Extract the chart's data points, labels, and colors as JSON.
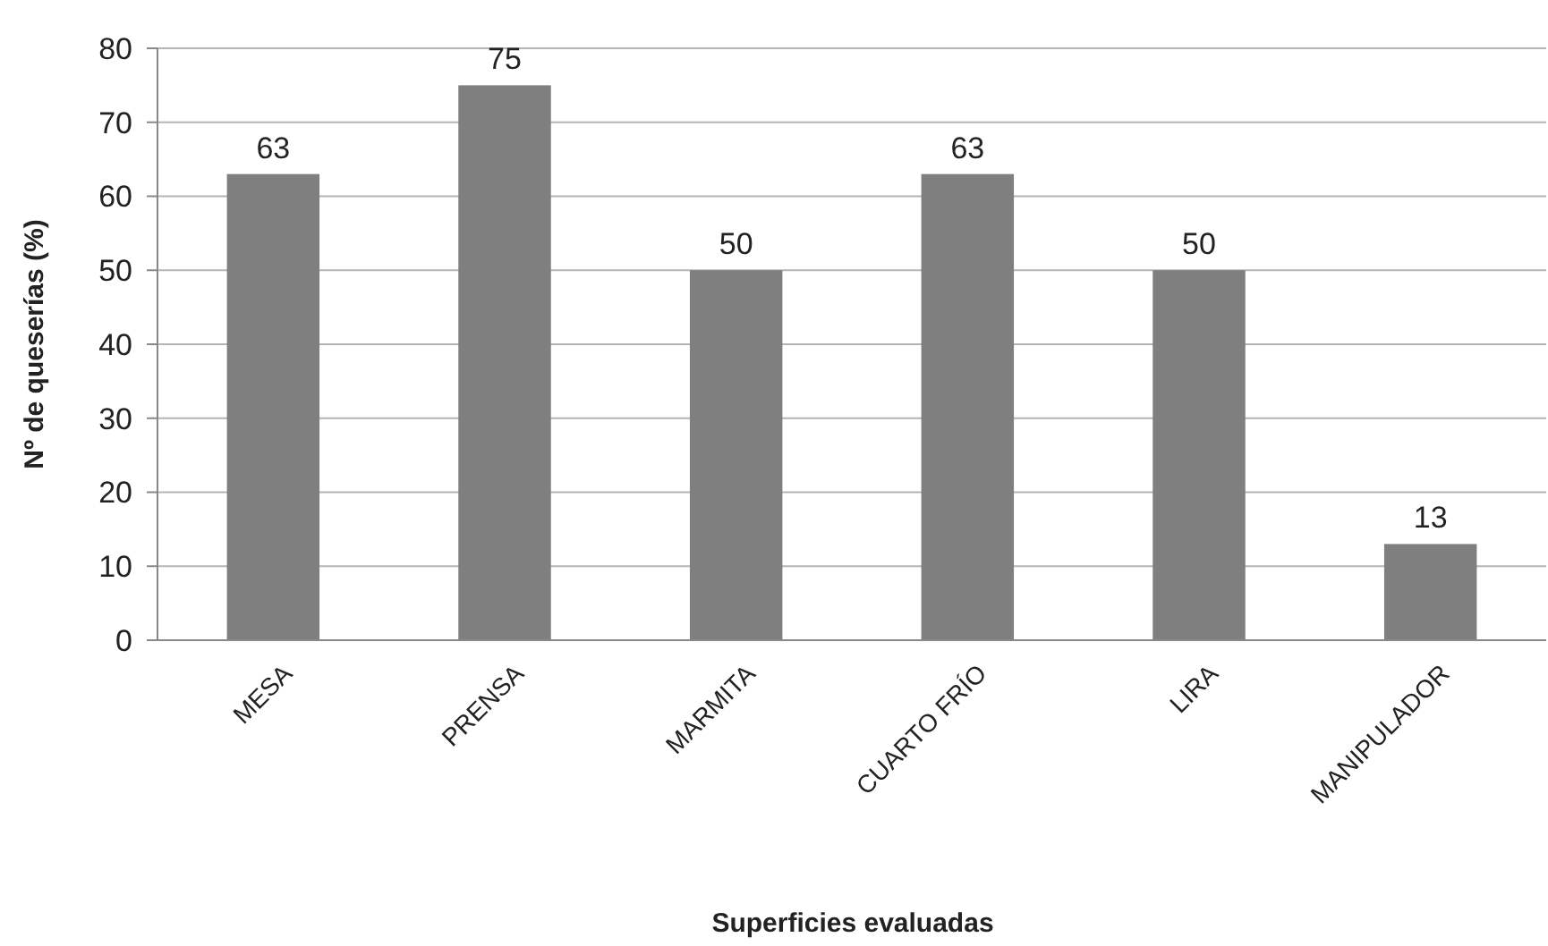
{
  "chart_data": {
    "type": "bar",
    "xlabel": "Superficies evaluadas",
    "ylabel": "Nº de queserías (%)",
    "categories": [
      "MESA",
      "PRENSA",
      "MARMITA",
      "CUARTO FRÍO",
      "LIRA",
      "MANIPULADOR"
    ],
    "values": [
      63,
      75,
      50,
      63,
      50,
      13
    ],
    "color": "#7f7f7f",
    "ylim": [
      0,
      80
    ],
    "yticks": [
      0,
      10,
      20,
      30,
      40,
      50,
      60,
      70,
      80
    ],
    "grid": "y",
    "data_labels": true
  }
}
